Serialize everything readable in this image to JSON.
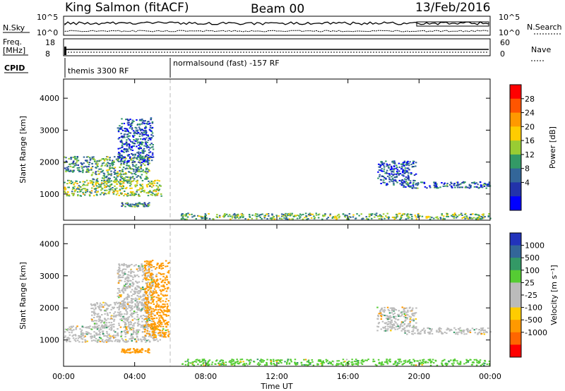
{
  "header": {
    "station": "King Salmon (fitACF)",
    "beam": "Beam 00",
    "date": "13/Feb/2016"
  },
  "top_panels": {
    "nsky_label": "N.Sky",
    "nsky_ticks": [
      "10^5",
      "10^0"
    ],
    "nsearch_label": "N.Search",
    "nsearch_ticks": [
      "10^5",
      "10^0"
    ],
    "freq_label_1": "Freq.",
    "freq_label_2": "[MHz]",
    "freq_ticks": [
      "18",
      "8"
    ],
    "nave_label": "Nave",
    "nave_ticks": [
      "60",
      "0"
    ],
    "cpid_label": "CPID",
    "cpid_entries": [
      {
        "name": "themis 3300 RF",
        "start_hour": 0
      },
      {
        "name": "normalsound (fast) -157 RF",
        "start_hour": 6
      }
    ]
  },
  "colorbars": {
    "power": {
      "label": "Power [dB]",
      "ticks": [
        "28",
        "24",
        "20",
        "16",
        "12",
        "8",
        "4"
      ],
      "colors": [
        "#ff0000",
        "#ff5500",
        "#ff9900",
        "#ffcc00",
        "#99cc33",
        "#339966",
        "#336699",
        "#2233aa",
        "#0000ff"
      ]
    },
    "velocity": {
      "label": "Velocity [m s⁻¹]",
      "ticks": [
        "1000",
        "500",
        "100",
        "25",
        "-25",
        "-100",
        "-500",
        "-1000"
      ],
      "colors": [
        "#2233bb",
        "#336699",
        "#339966",
        "#55cc33",
        "#bbbbbb",
        "#bbbbbb",
        "#ffcc00",
        "#ff9900",
        "#ff6600",
        "#ff0000"
      ]
    }
  },
  "axes": {
    "ylabel": "Slant Range [km]",
    "xlabel": "Time UT"
  },
  "chart_data": [
    {
      "type": "heatmap",
      "title": "",
      "xlabel": "Time UT",
      "ylabel": "Slant Range [km]",
      "x_ticks": [
        "00:00",
        "04:00",
        "08:00",
        "12:00",
        "16:00",
        "20:00",
        "00:00"
      ],
      "x_tick_hours": [
        0,
        4,
        8,
        12,
        16,
        20,
        24
      ],
      "y_ticks": [
        1000,
        2000,
        3000,
        4000
      ],
      "xlim_hours": [
        0,
        24
      ],
      "ylim_km": [
        180,
        4600
      ],
      "quantity": "Power [dB]",
      "regions": [
        {
          "t0": 0.0,
          "t1": 5.5,
          "r0": 950,
          "r1": 1450,
          "value": 16
        },
        {
          "t0": 0.0,
          "t1": 1.5,
          "r0": 1700,
          "r1": 2200,
          "value": 10
        },
        {
          "t0": 1.5,
          "t1": 4.8,
          "r0": 1400,
          "r1": 2200,
          "value": 12
        },
        {
          "t0": 3.0,
          "t1": 5.0,
          "r0": 2000,
          "r1": 3400,
          "value": 6
        },
        {
          "t0": 3.2,
          "t1": 4.8,
          "r0": 620,
          "r1": 750,
          "value": 10
        },
        {
          "t0": 17.6,
          "t1": 19.8,
          "r0": 1300,
          "r1": 2050,
          "value": 6
        },
        {
          "t0": 19.0,
          "t1": 24.0,
          "r0": 1200,
          "r1": 1400,
          "value": 8
        },
        {
          "t0": 6.5,
          "t1": 24.0,
          "r0": 230,
          "r1": 420,
          "value": 14
        }
      ]
    },
    {
      "type": "heatmap",
      "title": "",
      "xlabel": "Time UT",
      "ylabel": "Slant Range [km]",
      "x_ticks": [
        "00:00",
        "04:00",
        "08:00",
        "12:00",
        "16:00",
        "20:00",
        "00:00"
      ],
      "x_tick_hours": [
        0,
        4,
        8,
        12,
        16,
        20,
        24
      ],
      "y_ticks": [
        1000,
        2000,
        3000,
        4000
      ],
      "xlim_hours": [
        0,
        24
      ],
      "ylim_km": [
        180,
        4600
      ],
      "quantity": "Velocity [m s⁻¹]",
      "regions": [
        {
          "t0": 0.0,
          "t1": 5.5,
          "r0": 950,
          "r1": 1450,
          "value": 0
        },
        {
          "t0": 1.5,
          "t1": 4.8,
          "r0": 1400,
          "r1": 2200,
          "value": 0
        },
        {
          "t0": 3.0,
          "t1": 5.0,
          "r0": 2000,
          "r1": 3400,
          "value": 0
        },
        {
          "t0": 4.5,
          "t1": 5.9,
          "r0": 1100,
          "r1": 3500,
          "value": -200
        },
        {
          "t0": 3.2,
          "t1": 4.8,
          "r0": 620,
          "r1": 750,
          "value": -200
        },
        {
          "t0": 17.6,
          "t1": 19.8,
          "r0": 1300,
          "r1": 2050,
          "value": 0
        },
        {
          "t0": 19.0,
          "t1": 24.0,
          "r0": 1200,
          "r1": 1400,
          "value": 0
        },
        {
          "t0": 6.5,
          "t1": 24.0,
          "r0": 230,
          "r1": 420,
          "value": 50
        }
      ]
    }
  ]
}
